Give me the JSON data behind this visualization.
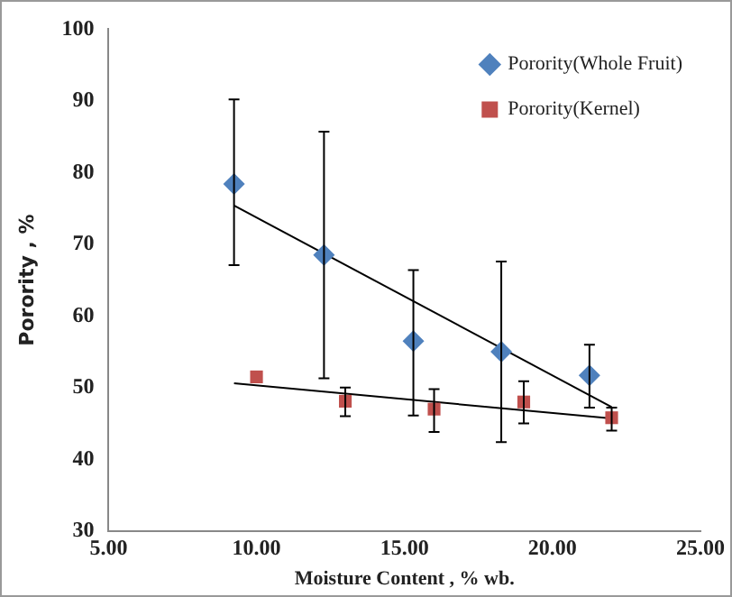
{
  "chart_data": {
    "type": "scatter",
    "xlabel": "Moisture Content , % wb.",
    "ylabel": "Porority , %",
    "xlim": [
      5,
      25
    ],
    "xticks": [
      {
        "value": 5,
        "label": "5.00"
      },
      {
        "value": 10,
        "label": "10.00"
      },
      {
        "value": 15,
        "label": "15.00"
      },
      {
        "value": 20,
        "label": "20.00"
      },
      {
        "value": 25,
        "label": "25.00"
      }
    ],
    "ylim": [
      30,
      100
    ],
    "yticks": [
      30,
      40,
      50,
      60,
      70,
      80,
      90,
      100
    ],
    "grid": false,
    "legend": "top right",
    "series": [
      {
        "name": "Porority(Whole Fruit)",
        "color": "#4f81bd",
        "marker": "diamond",
        "x": [
          9.24,
          12.28,
          15.3,
          18.27,
          21.25
        ],
        "values": [
          78.4,
          68.5,
          56.5,
          55.0,
          51.7
        ],
        "errors": [
          [
            67.1,
            90.2
          ],
          [
            51.3,
            85.7
          ],
          [
            46.1,
            66.4
          ],
          [
            42.4,
            67.6
          ],
          [
            47.2,
            56.0
          ]
        ]
      },
      {
        "name": "Porority(Kernel)",
        "color": "#c0504d",
        "marker": "square",
        "x": [
          10.0,
          13.0,
          16.0,
          19.03,
          22.0
        ],
        "values": [
          51.5,
          48.1,
          47.0,
          48.0,
          45.8
        ],
        "errors": [
          null,
          [
            46.0,
            50.0
          ],
          [
            43.8,
            49.8
          ],
          [
            45.0,
            50.9
          ],
          [
            44.0,
            47.2
          ]
        ]
      },
      {
        "type": "line",
        "color": "#000000",
        "marker": "none",
        "line_style": "solid",
        "x": [
          9.24,
          22.0
        ],
        "values": [
          75.4,
          47.3
        ]
      },
      {
        "type": "line",
        "color": "#000000",
        "marker": "none",
        "line_style": "solid",
        "x": [
          9.24,
          22.0
        ],
        "values": [
          50.6,
          45.7
        ]
      }
    ]
  }
}
